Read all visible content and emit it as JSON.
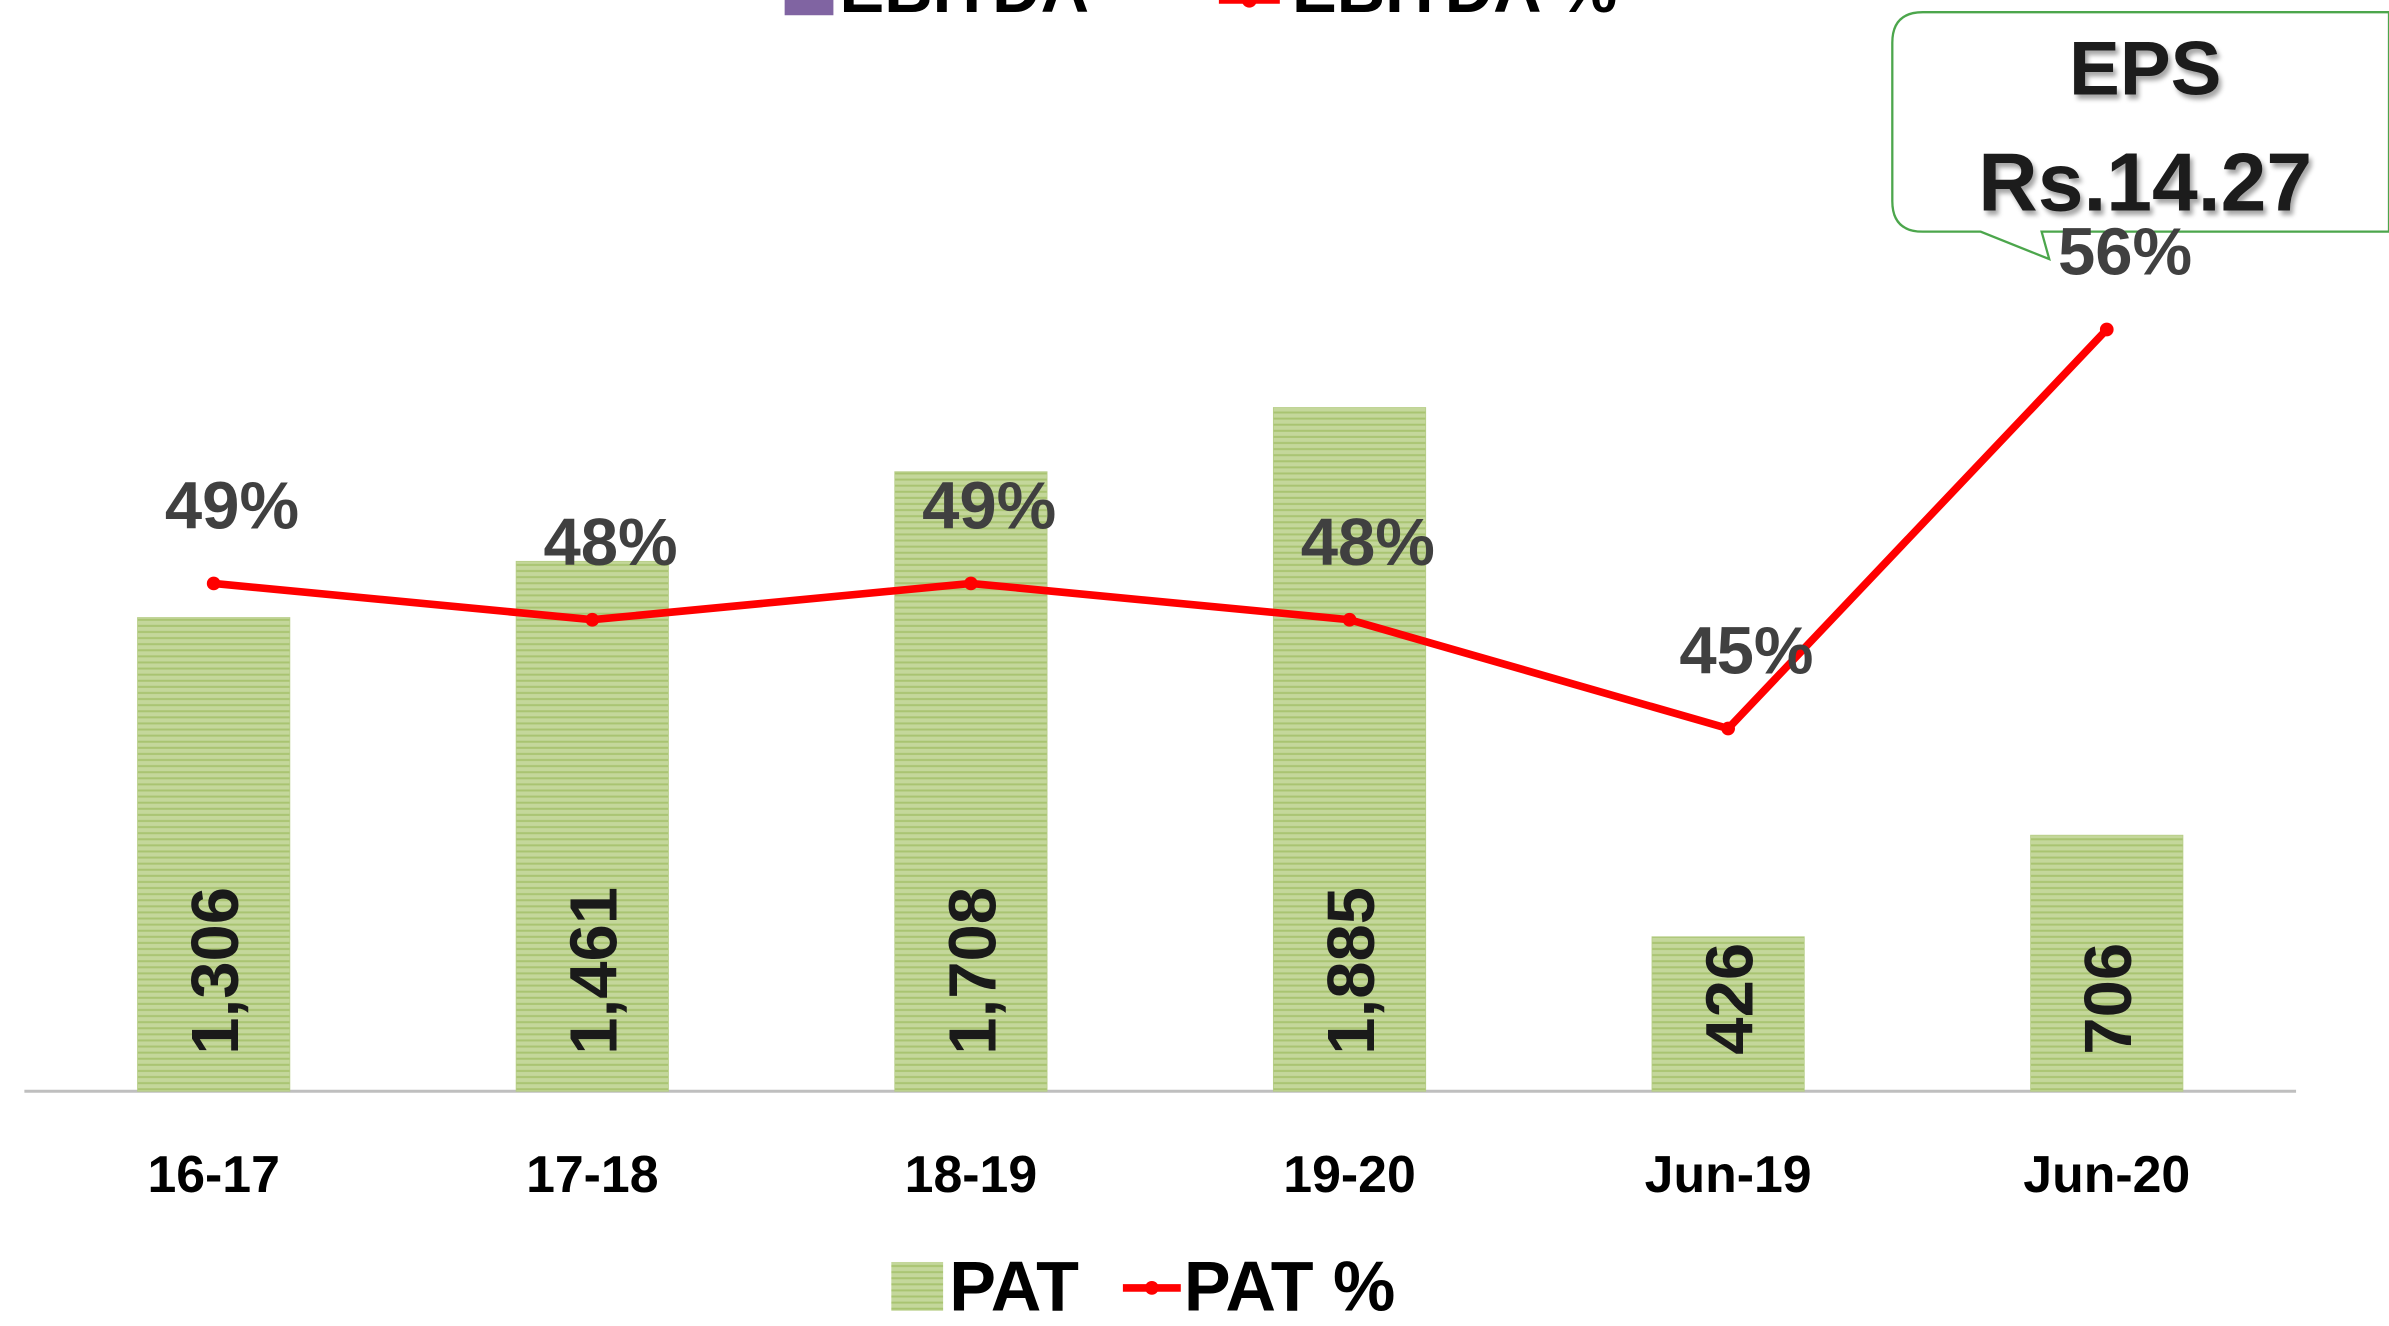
{
  "chart_data": {
    "type": "bar",
    "categories": [
      "16-17",
      "17-18",
      "18-19",
      "19-20",
      "Jun-19",
      "Jun-20"
    ],
    "series": [
      {
        "name": "PAT",
        "type": "bar",
        "color": "#c4d79b",
        "values": [
          1306,
          1461,
          1708,
          1885,
          426,
          706
        ],
        "value_labels": [
          "1,306",
          "1,461",
          "1,708",
          "1,885",
          "426",
          "706"
        ]
      },
      {
        "name": "PAT %",
        "type": "line",
        "axis": "y2",
        "color": "#ff0000",
        "values": [
          49,
          48,
          49,
          48,
          45,
          56
        ],
        "value_labels": [
          "49%",
          "48%",
          "49%",
          "48%",
          "45%",
          "56%"
        ]
      }
    ],
    "ylim": [
      0,
      3000
    ],
    "y2lim": [
      35,
      65
    ],
    "legend": "bottom",
    "cropped_legend": [
      {
        "name": "EBITDA",
        "color": "#8064a2"
      },
      {
        "name": "EBITDA %",
        "color": "#ff0000"
      }
    ],
    "annotation": {
      "lines": [
        "EPS",
        "Rs.14.27"
      ]
    }
  }
}
